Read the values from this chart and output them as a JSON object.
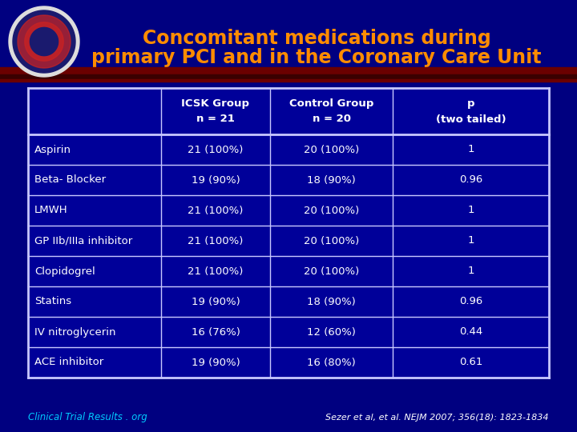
{
  "title_line1": "Concomitant medications during",
  "title_line2": "primary PCI and in the Coronary Care Unit",
  "title_color": "#FF8C00",
  "bg_color": "#000080",
  "border_color": "#C8C8FF",
  "text_color": "#FFFFFF",
  "header_text_color": "#FFFFFF",
  "col_headers": [
    "",
    "ICSK Group\nn = 21",
    "Control Group\nn = 20",
    "p\n(two tailed)"
  ],
  "rows": [
    [
      "Aspirin",
      "21 (100%)",
      "20 (100%)",
      "1"
    ],
    [
      "Beta- Blocker",
      "19 (90%)",
      "18 (90%)",
      "0.96"
    ],
    [
      "LMWH",
      "21 (100%)",
      "20 (100%)",
      "1"
    ],
    [
      "GP IIb/IIIa inhibitor",
      "21 (100%)",
      "20 (100%)",
      "1"
    ],
    [
      "Clopidogrel",
      "21 (100%)",
      "20 (100%)",
      "1"
    ],
    [
      "Statins",
      "19 (90%)",
      "18 (90%)",
      "0.96"
    ],
    [
      "IV nitroglycerin",
      "16 (76%)",
      "12 (60%)",
      "0.44"
    ],
    [
      "ACE inhibitor",
      "19 (90%)",
      "16 (80%)",
      "0.61"
    ]
  ],
  "footer_left": "Clinical Trial Results . org",
  "footer_right": "Sezer et al, et al. NEJM 2007; 356(18): 1823-1834",
  "separator_color1": "#8B0000",
  "separator_color2": "#5C1010",
  "table_bg_header": "#000099",
  "table_bg_data": "#000099"
}
